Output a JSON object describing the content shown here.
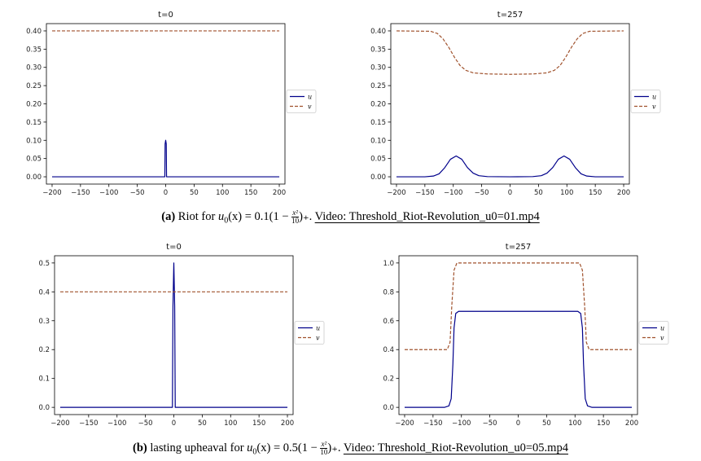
{
  "chart_data": [
    {
      "type": "line",
      "title": "t=0",
      "xlim": [
        -210,
        210
      ],
      "ylim": [
        -0.02,
        0.42
      ],
      "xticks": [
        -200,
        -150,
        -100,
        -50,
        0,
        50,
        100,
        150,
        200
      ],
      "yticks": [
        "0.00",
        "0.05",
        "0.10",
        "0.15",
        "0.20",
        "0.25",
        "0.30",
        "0.35",
        "0.40"
      ],
      "legend_placement": "outside-right",
      "series": [
        {
          "name": "u",
          "color": "#00008b",
          "style": "solid",
          "points": [
            [
              -200,
              0
            ],
            [
              -1.5,
              0
            ],
            [
              -1,
              0.09
            ],
            [
              0,
              0.1
            ],
            [
              1,
              0.09
            ],
            [
              1.5,
              0
            ],
            [
              200,
              0
            ]
          ]
        },
        {
          "name": "v",
          "color": "#a0522d",
          "style": "dashed",
          "points": [
            [
              -200,
              0.4
            ],
            [
              200,
              0.4
            ]
          ]
        }
      ]
    },
    {
      "type": "line",
      "title": "t=257",
      "xlim": [
        -210,
        210
      ],
      "ylim": [
        -0.02,
        0.42
      ],
      "xticks": [
        -200,
        -150,
        -100,
        -50,
        0,
        50,
        100,
        150,
        200
      ],
      "yticks": [
        "0.00",
        "0.05",
        "0.10",
        "0.15",
        "0.20",
        "0.25",
        "0.30",
        "0.35",
        "0.40"
      ],
      "legend_placement": "outside-right",
      "series": [
        {
          "name": "u",
          "color": "#00008b",
          "style": "solid",
          "points": [
            [
              -200,
              0
            ],
            [
              -150,
              0
            ],
            [
              -135,
              0.002
            ],
            [
              -125,
              0.008
            ],
            [
              -115,
              0.025
            ],
            [
              -105,
              0.048
            ],
            [
              -95,
              0.057
            ],
            [
              -85,
              0.048
            ],
            [
              -75,
              0.025
            ],
            [
              -65,
              0.01
            ],
            [
              -55,
              0.003
            ],
            [
              -40,
              0.0005
            ],
            [
              0,
              0
            ],
            [
              40,
              0.0005
            ],
            [
              55,
              0.003
            ],
            [
              65,
              0.01
            ],
            [
              75,
              0.025
            ],
            [
              85,
              0.048
            ],
            [
              95,
              0.057
            ],
            [
              105,
              0.048
            ],
            [
              115,
              0.025
            ],
            [
              125,
              0.008
            ],
            [
              135,
              0.002
            ],
            [
              150,
              0
            ],
            [
              200,
              0
            ]
          ]
        },
        {
          "name": "v",
          "color": "#a0522d",
          "style": "dashed",
          "points": [
            [
              -200,
              0.4
            ],
            [
              -140,
              0.399
            ],
            [
              -128,
              0.393
            ],
            [
              -118,
              0.378
            ],
            [
              -108,
              0.355
            ],
            [
              -98,
              0.328
            ],
            [
              -88,
              0.305
            ],
            [
              -78,
              0.292
            ],
            [
              -65,
              0.285
            ],
            [
              -40,
              0.282
            ],
            [
              0,
              0.281
            ],
            [
              40,
              0.282
            ],
            [
              65,
              0.285
            ],
            [
              78,
              0.292
            ],
            [
              88,
              0.305
            ],
            [
              98,
              0.328
            ],
            [
              108,
              0.355
            ],
            [
              118,
              0.378
            ],
            [
              128,
              0.393
            ],
            [
              140,
              0.399
            ],
            [
              200,
              0.4
            ]
          ]
        }
      ]
    },
    {
      "type": "line",
      "title": "t=0",
      "xlim": [
        -210,
        210
      ],
      "ylim": [
        -0.025,
        0.525
      ],
      "xticks": [
        -200,
        -150,
        -100,
        -50,
        0,
        50,
        100,
        150,
        200
      ],
      "yticks": [
        "0.0",
        "0.1",
        "0.2",
        "0.3",
        "0.4",
        "0.5"
      ],
      "legend_placement": "outside-right",
      "series": [
        {
          "name": "u",
          "color": "#00008b",
          "style": "solid",
          "points": [
            [
              -200,
              0
            ],
            [
              -2.5,
              0
            ],
            [
              -1.5,
              0.35
            ],
            [
              0,
              0.5
            ],
            [
              1.5,
              0.35
            ],
            [
              2.5,
              0
            ],
            [
              200,
              0
            ]
          ]
        },
        {
          "name": "v",
          "color": "#a0522d",
          "style": "dashed",
          "points": [
            [
              -200,
              0.4
            ],
            [
              200,
              0.4
            ]
          ]
        }
      ]
    },
    {
      "type": "line",
      "title": "t=257",
      "xlim": [
        -210,
        210
      ],
      "ylim": [
        -0.05,
        1.05
      ],
      "xticks": [
        -200,
        -150,
        -100,
        -50,
        0,
        50,
        100,
        150,
        200
      ],
      "yticks": [
        "0.0",
        "0.2",
        "0.4",
        "0.6",
        "0.8",
        "1.0"
      ],
      "legend_placement": "outside-right",
      "series": [
        {
          "name": "u",
          "color": "#00008b",
          "style": "solid",
          "points": [
            [
              -200,
              0
            ],
            [
              -130,
              0
            ],
            [
              -122,
              0.01
            ],
            [
              -118,
              0.06
            ],
            [
              -115,
              0.3
            ],
            [
              -113,
              0.55
            ],
            [
              -110,
              0.65
            ],
            [
              -105,
              0.665
            ],
            [
              105,
              0.665
            ],
            [
              110,
              0.65
            ],
            [
              113,
              0.55
            ],
            [
              115,
              0.3
            ],
            [
              118,
              0.06
            ],
            [
              122,
              0.01
            ],
            [
              130,
              0
            ],
            [
              200,
              0
            ]
          ]
        },
        {
          "name": "v",
          "color": "#a0522d",
          "style": "dashed",
          "points": [
            [
              -200,
              0.4
            ],
            [
              -125,
              0.4
            ],
            [
              -120,
              0.45
            ],
            [
              -117,
              0.7
            ],
            [
              -113,
              0.95
            ],
            [
              -108,
              1.0
            ],
            [
              108,
              1.0
            ],
            [
              113,
              0.95
            ],
            [
              117,
              0.7
            ],
            [
              120,
              0.45
            ],
            [
              125,
              0.4
            ],
            [
              200,
              0.4
            ]
          ]
        }
      ]
    }
  ],
  "captions": [
    {
      "label": "(a)",
      "text": "Riot for",
      "func": "u",
      "sub": "0",
      "arg": "(x) = 0.1(1 − ",
      "num": "x²",
      "den": "10",
      "tail": ")₊.",
      "link": "Video: Threshold_Riot-Revolution_u0=01.mp4"
    },
    {
      "label": "(b)",
      "text": "lasting upheaval for",
      "func": "u",
      "sub": "0",
      "arg": "(x) = 0.5(1 − ",
      "num": "x²",
      "den": "10",
      "tail": ")₊.",
      "link": "Video: Threshold_Riot-Revolution_u0=05.mp4"
    }
  ]
}
